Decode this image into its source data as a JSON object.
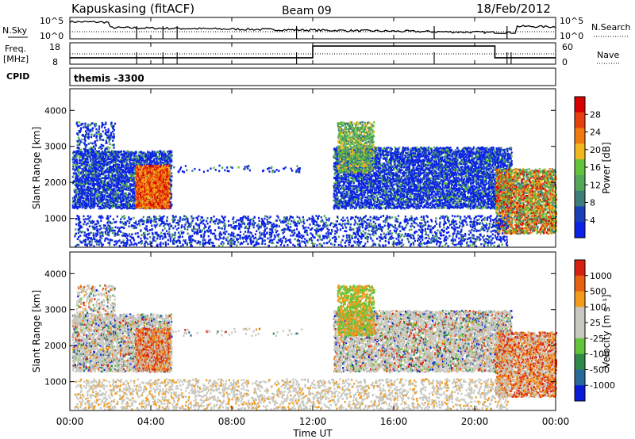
{
  "header": {
    "station": "Kapuskasing (fitACF)",
    "beam": "Beam 09",
    "date": "18/Feb/2012"
  },
  "noise_panel": {
    "left_label": "N.Sky",
    "left_ticks": [
      "10^5",
      "10^0"
    ],
    "right_label": "N.Search",
    "right_ticks": [
      "10^5",
      "10^0"
    ]
  },
  "freq_panel": {
    "left_label_line1": "Freq.",
    "left_label_line2": "[MHz]",
    "left_ticks": [
      "18",
      "8"
    ],
    "right_label": "Nave",
    "right_ticks": [
      "60",
      "0"
    ],
    "freq_steps": [
      {
        "t": 0,
        "v": 11
      },
      {
        "t": 12,
        "v": 16.5
      },
      {
        "t": 21,
        "v": 11
      },
      {
        "t": 24,
        "v": 11
      }
    ]
  },
  "cpid": {
    "label": "CPID",
    "value": "themis -3300"
  },
  "chart_data": [
    {
      "type": "heatmap",
      "ylabel": "Slant Range [km]",
      "yticks": [
        1000,
        2000,
        3000,
        4000
      ],
      "ylim": [
        200,
        4600
      ],
      "xlim": [
        0,
        24
      ],
      "colorbar_label": "Power [dB]",
      "colorbar_ticks": [
        "28",
        "24",
        "20",
        "16",
        "12",
        "8",
        "4"
      ],
      "colors": [
        "#0b22e6",
        "#1a3fb8",
        "#3d7e7a",
        "#52a858",
        "#62c43a",
        "#f2b71c",
        "#f07c10",
        "#e8400d",
        "#d80000"
      ]
    },
    {
      "type": "heatmap",
      "ylabel": "Slant Range [km]",
      "yticks": [
        1000,
        2000,
        3000,
        4000
      ],
      "ylim": [
        200,
        4600
      ],
      "xlim": [
        0,
        24
      ],
      "xlabel": "Time UT",
      "xticks": [
        "00:00",
        "04:00",
        "08:00",
        "12:00",
        "16:00",
        "20:00",
        "00:00"
      ],
      "colorbar_label": "Velocity [m s⁻¹]",
      "colorbar_ticks": [
        "1000",
        "500",
        "100",
        "25",
        "-25",
        "-100",
        "-500",
        "-1000"
      ],
      "colors": [
        "#0b1bd8",
        "#2a6a9a",
        "#2f8a4a",
        "#62c43a",
        "#c8c8c0",
        "#c8c8c0",
        "#f29a1a",
        "#e86012",
        "#d82010"
      ]
    }
  ]
}
